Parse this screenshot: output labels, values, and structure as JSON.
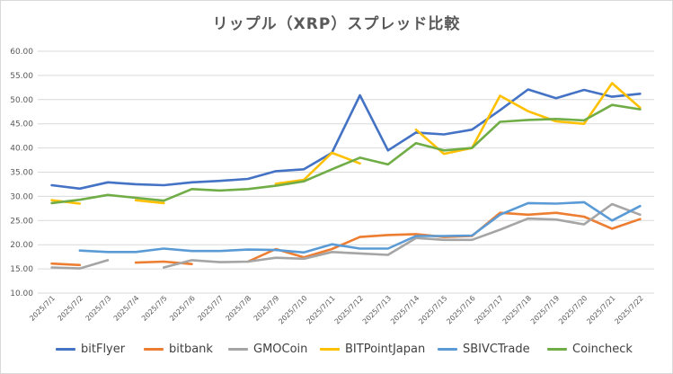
{
  "chart_data": {
    "type": "line",
    "title": "リップル（XRP）スプレッド比較",
    "xlabel": "",
    "ylabel": "",
    "ylim": [
      10,
      60
    ],
    "yticks": [
      "10.00",
      "15.00",
      "20.00",
      "25.00",
      "30.00",
      "35.00",
      "40.00",
      "45.00",
      "50.00",
      "55.00",
      "60.00"
    ],
    "grid": true,
    "legend_position": "bottom",
    "categories": [
      "2025/7/1",
      "2025/7/2",
      "2025/7/3",
      "2025/7/4",
      "2025/7/5",
      "2025/7/6",
      "2025/7/7",
      "2025/7/8",
      "2025/7/9",
      "2025/7/10",
      "2025/7/11",
      "2025/7/12",
      "2025/7/13",
      "2025/7/14",
      "2025/7/15",
      "2025/7/16",
      "2025/7/17",
      "2025/7/18",
      "2025/7/19",
      "2025/7/20",
      "2025/7/21",
      "2025/7/22"
    ],
    "series": [
      {
        "name": "bitFlyer",
        "color": "#4472C4",
        "values": [
          32.3,
          31.6,
          32.9,
          32.5,
          32.3,
          32.9,
          33.2,
          33.6,
          35.2,
          35.6,
          39.0,
          50.9,
          39.5,
          43.2,
          42.8,
          43.8,
          47.8,
          52.1,
          50.3,
          52.0,
          50.6,
          51.2
        ]
      },
      {
        "name": "bitbank",
        "color": "#ED7D31",
        "values": [
          16.1,
          15.8,
          null,
          16.3,
          16.5,
          16.0,
          null,
          16.5,
          19.1,
          17.4,
          19.1,
          21.6,
          22.0,
          22.2,
          21.6,
          21.8,
          26.6,
          26.2,
          26.6,
          25.8,
          23.3,
          25.3
        ]
      },
      {
        "name": "GMOCoin",
        "color": "#A5A5A5",
        "values": [
          15.3,
          15.1,
          16.8,
          null,
          15.3,
          16.8,
          16.4,
          16.5,
          17.3,
          17.1,
          18.5,
          18.2,
          17.9,
          21.4,
          21.0,
          21.0,
          23.1,
          25.4,
          25.2,
          24.2,
          28.4,
          26.2
        ]
      },
      {
        "name": "BITPointJapan",
        "color": "#FFC000",
        "values": [
          29.2,
          28.5,
          null,
          29.2,
          28.6,
          null,
          null,
          null,
          32.6,
          33.4,
          39.0,
          36.8,
          null,
          43.8,
          38.8,
          40.0,
          50.8,
          47.6,
          45.5,
          45.0,
          53.4,
          48.3
        ]
      },
      {
        "name": "SBIVCTrade",
        "color": "#5B9BD5",
        "values": [
          null,
          18.8,
          18.5,
          18.5,
          19.2,
          18.7,
          18.7,
          19.0,
          18.9,
          18.4,
          20.1,
          19.2,
          19.2,
          21.8,
          21.8,
          21.9,
          26.2,
          28.6,
          28.5,
          28.8,
          25.0,
          28.0
        ]
      },
      {
        "name": "Coincheck",
        "color": "#70AD47",
        "values": [
          28.6,
          29.3,
          30.3,
          29.7,
          29.1,
          31.5,
          31.2,
          31.5,
          32.2,
          33.1,
          35.6,
          38.0,
          36.6,
          41.0,
          39.5,
          40.0,
          45.4,
          45.8,
          46.0,
          45.7,
          48.9,
          48.0
        ]
      }
    ]
  }
}
